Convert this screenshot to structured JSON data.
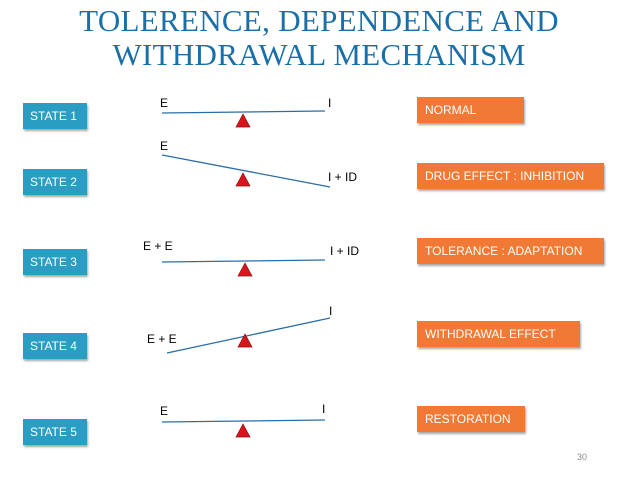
{
  "title_line1": "TOLERENCE,  DEPENDENCE AND",
  "title_line2": "WITHDRAWAL MECHANISM",
  "states": [
    {
      "state": "STATE 1",
      "left_label": "E",
      "right_label": "I",
      "effect": "NORMAL"
    },
    {
      "state": "STATE 2",
      "left_label": "E",
      "right_label": "I + ID",
      "effect": "DRUG EFFECT : INHIBITION"
    },
    {
      "state": "STATE 3",
      "left_label": "E + E",
      "right_label": "I + ID",
      "effect": "TOLERANCE : ADAPTATION"
    },
    {
      "state": "STATE 4",
      "left_label": "E + E",
      "right_label": "I",
      "effect": "WITHDRAWAL EFFECT"
    },
    {
      "state": "STATE 5",
      "left_label": "E",
      "right_label": "I",
      "effect": "RESTORATION"
    }
  ],
  "page_number": "30",
  "colors": {
    "title": "#1b6fa8",
    "state_box": "#2a9ec2",
    "effect_box": "#f07a35",
    "fulcrum": "#d8141c",
    "beam": "#2a6da4"
  }
}
